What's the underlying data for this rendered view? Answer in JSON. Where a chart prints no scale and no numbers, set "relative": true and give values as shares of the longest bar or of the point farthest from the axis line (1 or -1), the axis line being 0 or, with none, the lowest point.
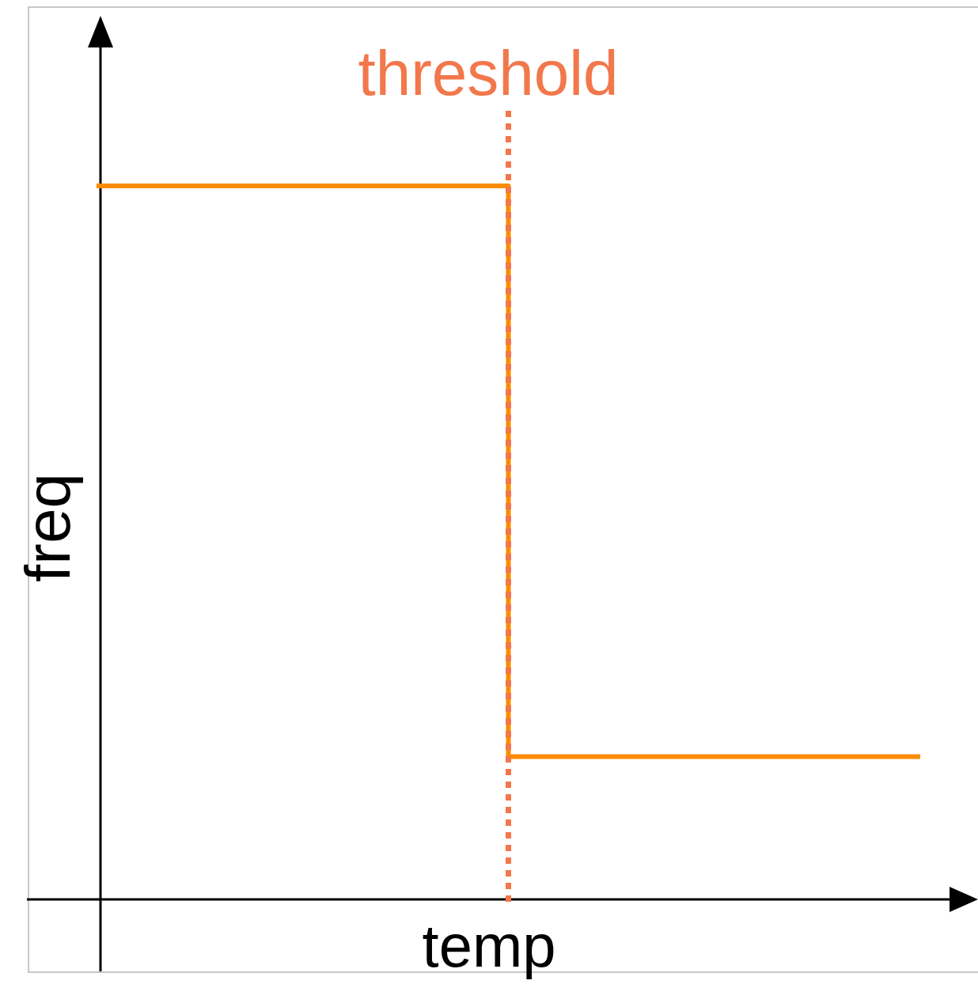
{
  "chart_data": {
    "type": "step",
    "categories": [
      null,
      null,
      null
    ],
    "values": [
      1,
      0.2,
      0.2
    ],
    "color": "#fb8c00",
    "relative": true,
    "xlabel": "temp",
    "ylabel": "freq",
    "annotations": [
      "threshold"
    ]
  }
}
